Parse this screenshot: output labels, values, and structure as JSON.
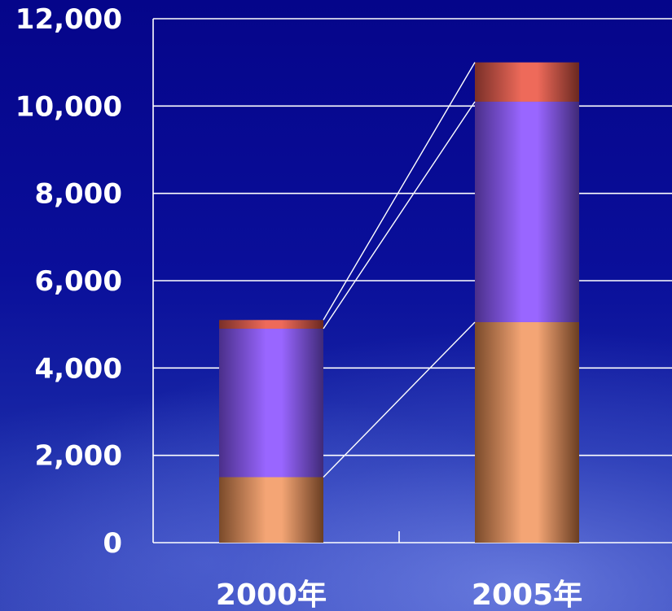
{
  "chart_data": {
    "type": "bar",
    "stacked": true,
    "categories": [
      "2000年",
      "2005年"
    ],
    "series": [
      {
        "values": [
          1500,
          5050
        ],
        "color": "#f4a575"
      },
      {
        "values": [
          3400,
          5050
        ],
        "color": "#9966ff"
      },
      {
        "values": [
          200,
          900
        ],
        "color": "#ee6a5a"
      }
    ],
    "ylim": [
      0,
      12000
    ],
    "yticks": [
      "0",
      "2,000",
      "4,000",
      "6,000",
      "8,000",
      "10,000",
      "12,000"
    ],
    "grid": true,
    "series_connector_lines": true,
    "legend": "none"
  }
}
